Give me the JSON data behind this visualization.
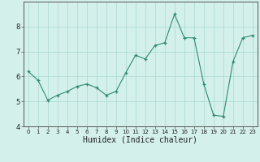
{
  "x": [
    0,
    1,
    2,
    3,
    4,
    5,
    6,
    7,
    8,
    9,
    10,
    11,
    12,
    13,
    14,
    15,
    16,
    17,
    18,
    19,
    20,
    21,
    22,
    23
  ],
  "y": [
    6.2,
    5.85,
    5.05,
    5.25,
    5.4,
    5.6,
    5.7,
    5.55,
    5.25,
    5.4,
    6.15,
    6.85,
    6.7,
    7.25,
    7.35,
    8.5,
    7.55,
    7.55,
    5.7,
    4.45,
    4.4,
    6.6,
    7.55,
    7.65
  ],
  "xlabel": "Humidex (Indice chaleur)",
  "ylim": [
    4,
    9
  ],
  "xlim": [
    -0.5,
    23.5
  ],
  "yticks": [
    4,
    5,
    6,
    7,
    8
  ],
  "xticks": [
    0,
    1,
    2,
    3,
    4,
    5,
    6,
    7,
    8,
    9,
    10,
    11,
    12,
    13,
    14,
    15,
    16,
    17,
    18,
    19,
    20,
    21,
    22,
    23
  ],
  "line_color": "#2e8b6e",
  "marker": "+",
  "bg_color": "#d4f0eb",
  "grid_color": "#a8d8d0",
  "axis_color": "#555555",
  "font_color": "#222222",
  "xlabel_fontsize": 7,
  "tick_fontsize": 5,
  "ytick_fontsize": 6
}
